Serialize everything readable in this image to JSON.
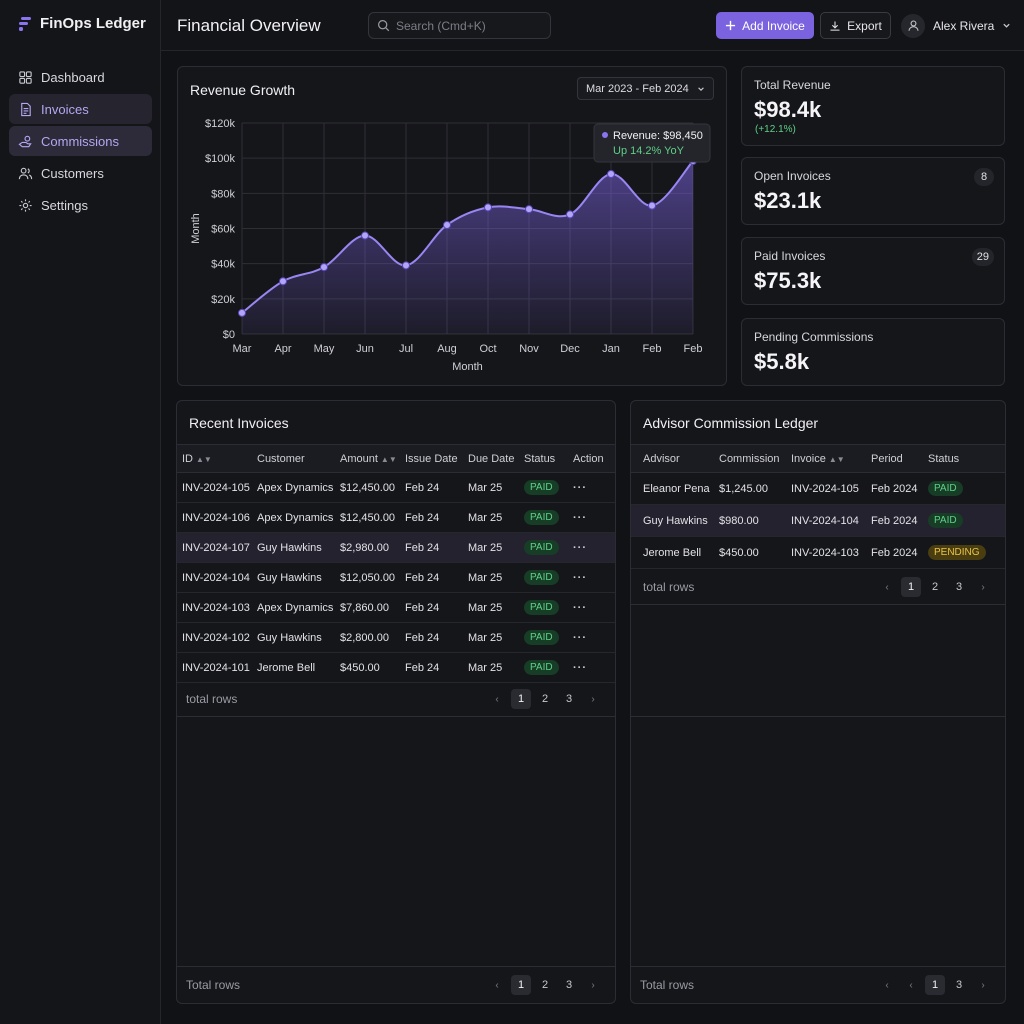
{
  "app": {
    "name": "FinOps Ledger"
  },
  "sidebar": {
    "items": [
      {
        "label": "Dashboard",
        "icon": "grid-icon"
      },
      {
        "label": "Invoices",
        "icon": "document-icon"
      },
      {
        "label": "Commissions",
        "icon": "hand-coin-icon"
      },
      {
        "label": "Customers",
        "icon": "users-icon"
      },
      {
        "label": "Settings",
        "icon": "gear-icon"
      }
    ]
  },
  "header": {
    "title": "Financial Overview",
    "search_placeholder": "Search (Cmd+K)",
    "add_invoice": "Add Invoice",
    "export": "Export",
    "user_name": "Alex Rivera"
  },
  "colors": {
    "accent": "#7b63e0",
    "paid": "#5ed088",
    "pending": "#e8c548"
  },
  "revenue_card": {
    "title": "Revenue Growth",
    "range": "Mar 2023 - Feb 2024"
  },
  "chart_data": {
    "type": "area",
    "categories": [
      "Mar",
      "Apr",
      "May",
      "Jun",
      "Jul",
      "Aug",
      "Oct",
      "Nov",
      "Dec",
      "Jan",
      "Feb",
      "Feb"
    ],
    "values": [
      12000,
      30000,
      38000,
      56000,
      39000,
      62000,
      72000,
      71000,
      68000,
      91000,
      73000,
      98450
    ],
    "xlabel": "Month",
    "ylabel": "Month",
    "yticks": [
      "$0",
      "$20k",
      "$40k",
      "$60k",
      "$80k",
      "$100k",
      "$120k"
    ],
    "ylim": [
      0,
      120000
    ],
    "grid": true,
    "tooltip": {
      "label": "Revenue: $98,450",
      "sub": "Up 14.2% YoY"
    }
  },
  "kpis": [
    {
      "label": "Total Revenue",
      "value": "$98.4k",
      "delta": "(+12.1%)",
      "badge": ""
    },
    {
      "label": "Open Invoices",
      "value": "$23.1k",
      "delta": "",
      "badge": "8"
    },
    {
      "label": "Paid Invoices",
      "value": "$75.3k",
      "delta": "",
      "badge": "29"
    },
    {
      "label": "Pending Commissions",
      "value": "$5.8k",
      "delta": "",
      "badge": ""
    }
  ],
  "recent_invoices": {
    "title": "Recent Invoices",
    "columns": [
      "ID",
      "Customer",
      "Amount",
      "Issue Date",
      "Due Date",
      "Status",
      "Action"
    ],
    "rows": [
      {
        "id": "INV-2024-105",
        "customer": "Apex Dynamics",
        "amount": "$12,450.00",
        "issue": "Feb 24",
        "due": "Mar 25",
        "status": "PAID"
      },
      {
        "id": "INV-2024-106",
        "customer": "Apex Dynamics",
        "amount": "$12,450.00",
        "issue": "Feb 24",
        "due": "Mar 25",
        "status": "PAID"
      },
      {
        "id": "INV-2024-107",
        "customer": "Guy Hawkins",
        "amount": "$2,980.00",
        "issue": "Feb 24",
        "due": "Mar 25",
        "status": "PAID"
      },
      {
        "id": "INV-2024-104",
        "customer": "Guy Hawkins",
        "amount": "$12,050.00",
        "issue": "Feb 24",
        "due": "Mar 25",
        "status": "PAID"
      },
      {
        "id": "INV-2024-103",
        "customer": "Apex Dynamics",
        "amount": "$7,860.00",
        "issue": "Feb 24",
        "due": "Mar 25",
        "status": "PAID"
      },
      {
        "id": "INV-2024-102",
        "customer": "Guy Hawkins",
        "amount": "$2,800.00",
        "issue": "Feb 24",
        "due": "Mar 25",
        "status": "PAID"
      },
      {
        "id": "INV-2024-101",
        "customer": "Jerome Bell",
        "amount": "$450.00",
        "issue": "Feb 24",
        "due": "Mar 25",
        "status": "PAID"
      }
    ],
    "total_rows_label": "total rows",
    "footer_total_label": "Total rows",
    "pages": [
      "1",
      "2",
      "3"
    ],
    "footer_pages": [
      "1",
      "2",
      "3"
    ]
  },
  "commission_ledger": {
    "title": "Advisor Commission Ledger",
    "columns": [
      "Advisor",
      "Commission",
      "Invoice",
      "Period",
      "Status"
    ],
    "rows": [
      {
        "advisor": "Eleanor Pena",
        "commission": "$1,245.00",
        "invoice": "INV-2024-105",
        "period": "Feb 2024",
        "status": "PAID"
      },
      {
        "advisor": "Guy Hawkins",
        "commission": "$980.00",
        "invoice": "INV-2024-104",
        "period": "Feb 2024",
        "status": "PAID"
      },
      {
        "advisor": "Jerome Bell",
        "commission": "$450.00",
        "invoice": "INV-2024-103",
        "period": "Feb 2024",
        "status": "PENDING"
      }
    ],
    "total_rows_label": "total rows",
    "footer_total_label": "Total rows",
    "pages": [
      "1",
      "2",
      "3"
    ],
    "footer_pages": [
      "1",
      "3"
    ]
  }
}
